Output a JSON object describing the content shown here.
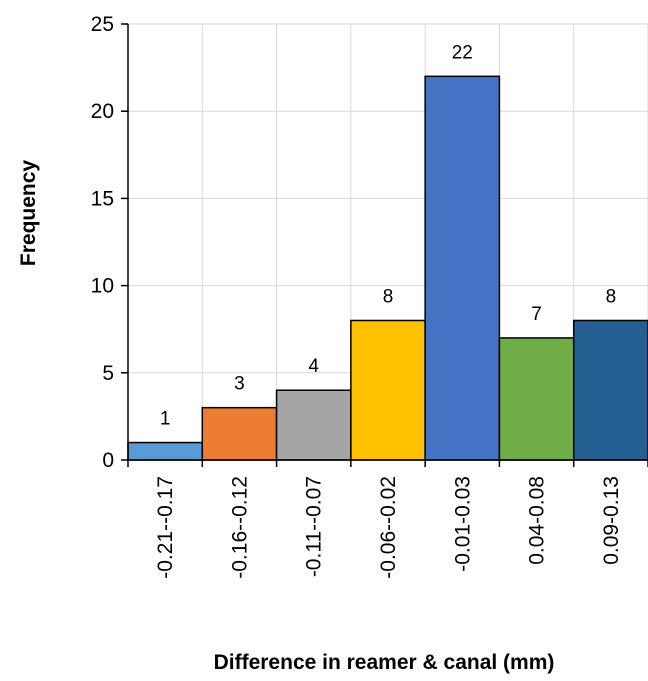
{
  "chart_data": {
    "type": "bar",
    "title": "",
    "xlabel": "Difference in reamer & canal (mm)",
    "ylabel": "Frequency",
    "categories": [
      "-0.21--0.17",
      "-0.16--0.12",
      "-0.11--0.07",
      "-0.06--0.02",
      "-0.01-0.03",
      "0.04-0.08",
      "0.09-0.13"
    ],
    "values": [
      1,
      3,
      4,
      8,
      22,
      7,
      8
    ],
    "colors": [
      "#5B9BD5",
      "#ED7D31",
      "#A5A5A5",
      "#FFC000",
      "#4472C4",
      "#70AD47",
      "#255E91"
    ],
    "ylim": [
      0,
      25
    ],
    "yticks": [
      0,
      5,
      10,
      15,
      20,
      25
    ],
    "grid": true,
    "legend": "none"
  }
}
